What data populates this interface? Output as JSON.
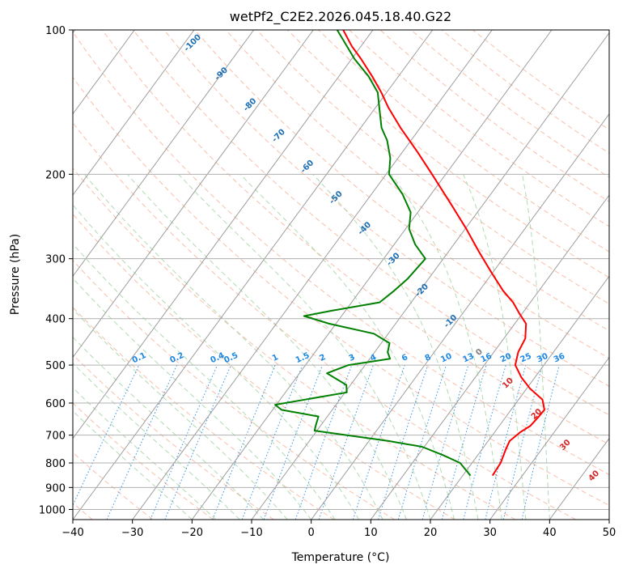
{
  "chart_data": {
    "type": "line",
    "subtype": "skew-t log-p diagram",
    "title": "wetPf2_C2E2.2026.045.18.40.G22",
    "xlabel": "Temperature (°C)",
    "ylabel": "Pressure (hPa)",
    "xlim": [
      -40,
      50
    ],
    "ylim": [
      1050,
      100
    ],
    "y_scale": "log",
    "x_ticks": [
      -40,
      -30,
      -20,
      -10,
      0,
      10,
      20,
      30,
      40,
      50
    ],
    "x_tick_labels": [
      "−40",
      "−30",
      "−20",
      "−10",
      "0",
      "10",
      "20",
      "30",
      "40",
      "50"
    ],
    "y_ticks": [
      100,
      200,
      300,
      400,
      500,
      600,
      700,
      800,
      900,
      1000
    ],
    "y_tick_labels": [
      "100",
      "200",
      "300",
      "400",
      "500",
      "600",
      "700",
      "800",
      "900",
      "1000"
    ],
    "grid": true,
    "series": [
      {
        "role": "temperature",
        "color": "#ff0000",
        "points": [
          {
            "p": 850,
            "t": 25.0
          },
          {
            "p": 800,
            "t": 24.8
          },
          {
            "p": 750,
            "t": 24.0
          },
          {
            "p": 720,
            "t": 23.6
          },
          {
            "p": 690,
            "t": 24.3
          },
          {
            "p": 670,
            "t": 25.2
          },
          {
            "p": 640,
            "t": 25.5
          },
          {
            "p": 620,
            "t": 25.6
          },
          {
            "p": 590,
            "t": 24.0
          },
          {
            "p": 560,
            "t": 20.6
          },
          {
            "p": 530,
            "t": 17.7
          },
          {
            "p": 500,
            "t": 15.2
          },
          {
            "p": 470,
            "t": 14.1
          },
          {
            "p": 440,
            "t": 13.6
          },
          {
            "p": 410,
            "t": 11.9
          },
          {
            "p": 390,
            "t": 9.5
          },
          {
            "p": 370,
            "t": 7.1
          },
          {
            "p": 350,
            "t": 4.0
          },
          {
            "p": 320,
            "t": -0.3
          },
          {
            "p": 290,
            "t": -4.9
          },
          {
            "p": 260,
            "t": -9.8
          },
          {
            "p": 230,
            "t": -15.6
          },
          {
            "p": 200,
            "t": -22.3
          },
          {
            "p": 180,
            "t": -27.4
          },
          {
            "p": 160,
            "t": -33.3
          },
          {
            "p": 145,
            "t": -37.9
          },
          {
            "p": 135,
            "t": -40.9
          },
          {
            "p": 125,
            "t": -44.4
          },
          {
            "p": 115,
            "t": -48.4
          },
          {
            "p": 108,
            "t": -51.6
          },
          {
            "p": 100,
            "t": -55.0
          }
        ]
      },
      {
        "role": "dewpoint",
        "color": "#008000",
        "points": [
          {
            "p": 850,
            "t": 21.3
          },
          {
            "p": 800,
            "t": 18.0
          },
          {
            "p": 770,
            "t": 14.1
          },
          {
            "p": 740,
            "t": 9.6
          },
          {
            "p": 720,
            "t": 3.3
          },
          {
            "p": 700,
            "t": -4.4
          },
          {
            "p": 685,
            "t": -10.4
          },
          {
            "p": 670,
            "t": -10.8
          },
          {
            "p": 640,
            "t": -11.5
          },
          {
            "p": 620,
            "t": -18.5
          },
          {
            "p": 605,
            "t": -20.2
          },
          {
            "p": 590,
            "t": -15.8
          },
          {
            "p": 570,
            "t": -9.7
          },
          {
            "p": 550,
            "t": -10.7
          },
          {
            "p": 520,
            "t": -15.4
          },
          {
            "p": 500,
            "t": -12.8
          },
          {
            "p": 485,
            "t": -6.6
          },
          {
            "p": 470,
            "t": -7.8
          },
          {
            "p": 450,
            "t": -8.6
          },
          {
            "p": 430,
            "t": -12.4
          },
          {
            "p": 410,
            "t": -21.1
          },
          {
            "p": 395,
            "t": -26.3
          },
          {
            "p": 385,
            "t": -22.3
          },
          {
            "p": 370,
            "t": -15.3
          },
          {
            "p": 350,
            "t": -14.3
          },
          {
            "p": 330,
            "t": -13.5
          },
          {
            "p": 300,
            "t": -13.0
          },
          {
            "p": 280,
            "t": -16.5
          },
          {
            "p": 260,
            "t": -19.4
          },
          {
            "p": 240,
            "t": -21.2
          },
          {
            "p": 220,
            "t": -24.8
          },
          {
            "p": 200,
            "t": -29.5
          },
          {
            "p": 185,
            "t": -31.3
          },
          {
            "p": 170,
            "t": -34.0
          },
          {
            "p": 160,
            "t": -36.5
          },
          {
            "p": 145,
            "t": -39.4
          },
          {
            "p": 135,
            "t": -41.5
          },
          {
            "p": 125,
            "t": -45.0
          },
          {
            "p": 115,
            "t": -49.5
          },
          {
            "p": 100,
            "t": -56.0
          }
        ]
      }
    ],
    "dry_adiabat_labels": [
      "-100",
      "-90",
      "-80",
      "-70",
      "-60",
      "-50",
      "-40",
      "-30",
      "-20",
      "-10",
      "0",
      "10",
      "20",
      "30",
      "40"
    ],
    "mixing_ratio_labels": [
      "0.1",
      "0.2",
      "0.4",
      "0.5",
      "1",
      "1.5",
      "2",
      "3",
      "4",
      "6",
      "8",
      "10",
      "13",
      "16",
      "20",
      "25",
      "30",
      "36"
    ],
    "colors": {
      "isobar": "#b0b0b0",
      "isotherm": "#9e9e9e",
      "dry_adiabat": "#f6a98e",
      "moist_adiabat": "#9fd19f",
      "mixing_ratio": "#1e88e5",
      "adiabat_label_cold": "#1f6fb4",
      "adiabat_label_warm": "#d62728",
      "adiabat_label_zero": "#7f7f7f",
      "mixing_ratio_label": "#1e88e5"
    }
  }
}
